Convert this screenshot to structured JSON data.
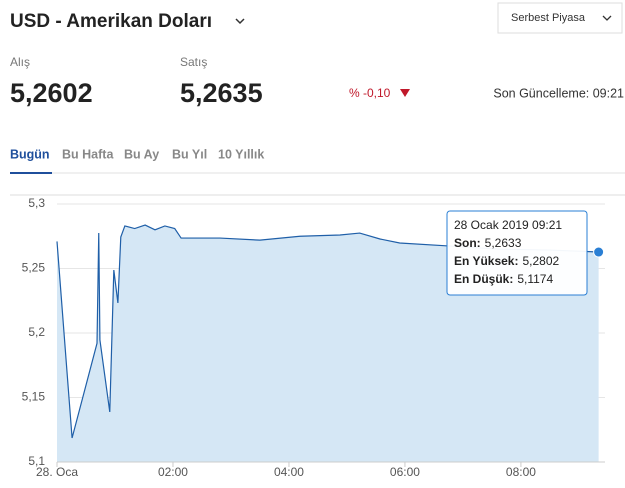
{
  "header": {
    "title": "USD - Amerikan Doları",
    "market": "Serbest Piyasa"
  },
  "quote": {
    "buy_label": "Alış",
    "buy": "5,2602",
    "sell_label": "Satış",
    "sell": "5,2635",
    "change": "% -0,10",
    "updated": "Son Güncelleme: 09:21"
  },
  "tabs": [
    "Bugün",
    "Bu Hafta",
    "Bu Ay",
    "Bu Yıl",
    "10 Yıllık"
  ],
  "tooltip": {
    "date": "28 Ocak 2019 09:21",
    "last_label": "Son:",
    "last": "5,2633",
    "high_label": "En Yüksek:",
    "high": "5,2802",
    "low_label": "En Düşük:",
    "low": "5,1174"
  },
  "chart_data": {
    "type": "line",
    "area": true,
    "color": "#1f5fa8",
    "fill": "#d5e7f5",
    "grid": true,
    "x": [
      0,
      0.26,
      0.69,
      0.72,
      0.74,
      0.91,
      0.98,
      1.05,
      1.1,
      1.17,
      1.34,
      1.52,
      1.69,
      1.86,
      2.03,
      2.14,
      2.81,
      3.5,
      4.19,
      4.88,
      5.22,
      5.57,
      5.91,
      6.78,
      7.64,
      8.5,
      9.34
    ],
    "values": [
      5.271,
      5.1186,
      5.192,
      5.2775,
      5.1946,
      5.1388,
      5.2488,
      5.2233,
      5.2744,
      5.283,
      5.281,
      5.2837,
      5.28,
      5.283,
      5.281,
      5.2736,
      5.2736,
      5.272,
      5.275,
      5.276,
      5.2775,
      5.2729,
      5.2698,
      5.2674,
      5.265,
      5.2643,
      5.2628
    ],
    "xlim": [
      0,
      9.45
    ],
    "ylim": [
      5.1,
      5.307
    ],
    "xticks": [
      {
        "value": 0,
        "label": "28. Oca"
      },
      {
        "value": 2,
        "label": "02:00"
      },
      {
        "value": 4,
        "label": "04:00"
      },
      {
        "value": 6,
        "label": "06:00"
      },
      {
        "value": 8,
        "label": "08:00"
      }
    ],
    "yticks": [
      {
        "value": 5.1,
        "label": "5,1"
      },
      {
        "value": 5.15,
        "label": "5,15"
      },
      {
        "value": 5.2,
        "label": "5,2"
      },
      {
        "value": 5.25,
        "label": "5,25"
      },
      {
        "value": 5.3,
        "label": "5,3"
      }
    ]
  }
}
